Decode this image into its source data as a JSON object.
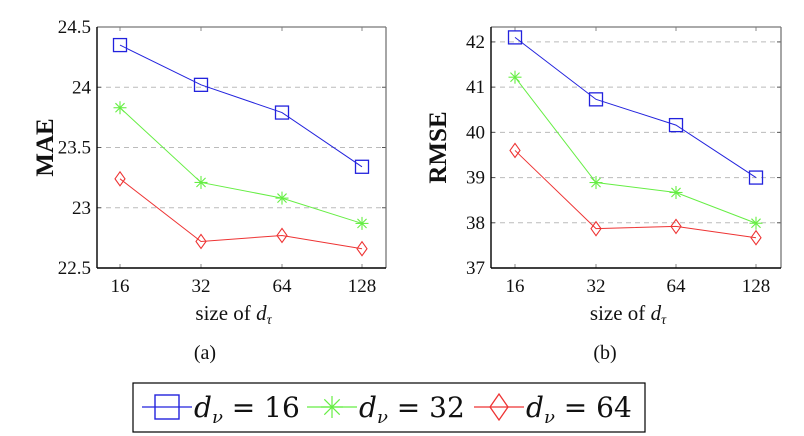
{
  "chart_data": [
    {
      "type": "line",
      "id": "a",
      "caption": "(a)",
      "xlabel": "size of d_τ",
      "xlabel_prefix": "size of ",
      "xlabel_var": "d",
      "xlabel_sub": "τ",
      "ylabel": "MAE",
      "categories": [
        "16",
        "32",
        "64",
        "128"
      ],
      "ylim": [
        22.5,
        24.5
      ],
      "yticks": [
        "22.5",
        "23",
        "23.5",
        "24",
        "24.5"
      ],
      "ytick_values": [
        22.5,
        23,
        23.5,
        24,
        24.5
      ],
      "grid": "horizontal-dashed",
      "series": [
        {
          "name": "d_ν = 16",
          "values": [
            24.35,
            24.02,
            23.79,
            23.34
          ]
        },
        {
          "name": "d_ν = 32",
          "values": [
            23.83,
            23.21,
            23.08,
            22.87
          ]
        },
        {
          "name": "d_ν = 64",
          "values": [
            23.24,
            22.72,
            22.77,
            22.66
          ]
        }
      ]
    },
    {
      "type": "line",
      "id": "b",
      "caption": "(b)",
      "xlabel": "size of d_τ",
      "xlabel_prefix": "size of ",
      "xlabel_var": "d",
      "xlabel_sub": "τ",
      "ylabel": "RMSE",
      "categories": [
        "16",
        "32",
        "64",
        "128"
      ],
      "ylim": [
        37,
        42.33
      ],
      "yticks": [
        "37",
        "38",
        "39",
        "40",
        "41",
        "42"
      ],
      "ytick_values": [
        37,
        38,
        39,
        40,
        41,
        42
      ],
      "grid": "horizontal-dashed",
      "series": [
        {
          "name": "d_ν = 16",
          "values": [
            42.1,
            40.73,
            40.16,
            39.0
          ]
        },
        {
          "name": "d_ν = 32",
          "values": [
            41.22,
            38.89,
            38.67,
            37.99
          ]
        },
        {
          "name": "d_ν = 64",
          "values": [
            39.6,
            37.87,
            37.92,
            37.67
          ]
        }
      ]
    }
  ],
  "legend": {
    "placement": "bottom-center",
    "entries": [
      {
        "var": "d",
        "sub": "ν",
        "eq": " = 16",
        "marker": "square",
        "color": "#2222dd"
      },
      {
        "var": "d",
        "sub": "ν",
        "eq": " = 32",
        "marker": "star",
        "color": "#66ee44"
      },
      {
        "var": "d",
        "sub": "ν",
        "eq": " = 64",
        "marker": "diamond",
        "color": "#ee3333"
      }
    ]
  },
  "colors": {
    "series": [
      "#2222dd",
      "#66ee44",
      "#ee3333"
    ],
    "grid": "#bbbbbb",
    "axis": "#000000"
  },
  "markers": [
    "square",
    "star",
    "diamond"
  ]
}
